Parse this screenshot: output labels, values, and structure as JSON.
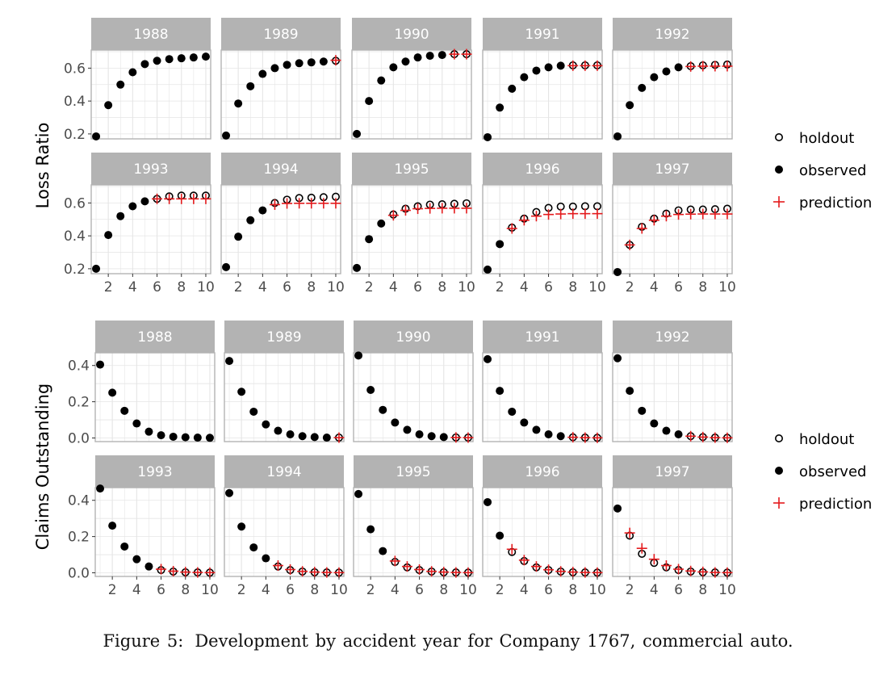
{
  "caption": {
    "label": "Figure 5:",
    "text": "Development by accident year for Company 1767, commercial auto."
  },
  "legend": {
    "holdout": "holdout",
    "observed": "observed",
    "prediction": "prediction"
  },
  "colors": {
    "strip": "#b3b3b3",
    "strip_text": "#ffffff",
    "point": "#000000",
    "prediction": "#e41a1c",
    "grid": "#e5e5e5",
    "panel_border": "#b3b3b3"
  },
  "chart_data": [
    {
      "type": "scatter",
      "facet_layout": "wrap 2x5",
      "ylabel": "Loss Ratio",
      "x_ticks": [
        2,
        4,
        6,
        8,
        10
      ],
      "y_ticks": [
        "0.2",
        "0.4",
        "0.6"
      ],
      "ylim": [
        0.17,
        0.71
      ],
      "xlim": [
        0.6,
        10.4
      ],
      "grid": true,
      "legend_position": "right",
      "panels": [
        {
          "year": "1988",
          "observed": [
            0.185,
            0.375,
            0.5,
            0.575,
            0.625,
            0.645,
            0.655,
            0.66,
            0.665,
            0.67
          ],
          "holdout": [],
          "prediction": []
        },
        {
          "year": "1989",
          "observed": [
            0.19,
            0.385,
            0.49,
            0.565,
            0.6,
            0.62,
            0.63,
            0.635,
            0.64
          ],
          "holdout": [
            0.645
          ],
          "prediction": [
            0.648
          ]
        },
        {
          "year": "1990",
          "observed": [
            0.2,
            0.4,
            0.525,
            0.605,
            0.64,
            0.665,
            0.675,
            0.68
          ],
          "holdout": [
            0.685,
            0.685
          ],
          "prediction": [
            0.685,
            0.685
          ]
        },
        {
          "year": "1991",
          "observed": [
            0.18,
            0.36,
            0.475,
            0.545,
            0.585,
            0.605,
            0.615
          ],
          "holdout": [
            0.617,
            0.617,
            0.617
          ],
          "prediction": [
            0.615,
            0.615,
            0.615
          ]
        },
        {
          "year": "1992",
          "observed": [
            0.185,
            0.375,
            0.48,
            0.545,
            0.58,
            0.605
          ],
          "holdout": [
            0.612,
            0.617,
            0.62,
            0.622
          ],
          "prediction": [
            0.61,
            0.612,
            0.612,
            0.612
          ]
        },
        {
          "year": "1993",
          "observed": [
            0.2,
            0.405,
            0.52,
            0.58,
            0.61
          ],
          "holdout": [
            0.625,
            0.64,
            0.645,
            0.645,
            0.645
          ],
          "prediction": [
            0.625,
            0.625,
            0.625,
            0.625,
            0.625
          ]
        },
        {
          "year": "1994",
          "observed": [
            0.21,
            0.395,
            0.495,
            0.555
          ],
          "holdout": [
            0.6,
            0.62,
            0.63,
            0.632,
            0.635,
            0.638
          ],
          "prediction": [
            0.59,
            0.597,
            0.598,
            0.598,
            0.598,
            0.598
          ]
        },
        {
          "year": "1995",
          "observed": [
            0.205,
            0.38,
            0.475
          ],
          "holdout": [
            0.53,
            0.565,
            0.58,
            0.59,
            0.592,
            0.595,
            0.598
          ],
          "prediction": [
            0.525,
            0.555,
            0.565,
            0.567,
            0.568,
            0.568,
            0.568
          ]
        },
        {
          "year": "1996",
          "observed": [
            0.195,
            0.35
          ],
          "holdout": [
            0.45,
            0.505,
            0.545,
            0.57,
            0.578,
            0.578,
            0.58,
            0.58
          ],
          "prediction": [
            0.445,
            0.495,
            0.52,
            0.53,
            0.533,
            0.535,
            0.535,
            0.535
          ]
        },
        {
          "year": "1997",
          "observed": [
            0.18
          ],
          "holdout": [
            0.345,
            0.455,
            0.505,
            0.535,
            0.555,
            0.56,
            0.56,
            0.562,
            0.565
          ],
          "prediction": [
            0.345,
            0.445,
            0.495,
            0.52,
            0.53,
            0.532,
            0.533,
            0.533,
            0.533
          ]
        }
      ]
    },
    {
      "type": "scatter",
      "facet_layout": "wrap 2x5",
      "ylabel": "Claims Outstanding",
      "x_ticks": [
        2,
        4,
        6,
        8,
        10
      ],
      "y_ticks": [
        "0.0",
        "0.2",
        "0.4"
      ],
      "ylim": [
        -0.02,
        0.47
      ],
      "xlim": [
        0.6,
        10.4
      ],
      "grid": true,
      "legend_position": "right",
      "panels": [
        {
          "year": "1988",
          "observed": [
            0.405,
            0.25,
            0.15,
            0.08,
            0.035,
            0.015,
            0.007,
            0.004,
            0.002,
            0.001
          ],
          "holdout": [],
          "prediction": []
        },
        {
          "year": "1989",
          "observed": [
            0.425,
            0.255,
            0.145,
            0.075,
            0.04,
            0.02,
            0.01,
            0.005,
            0.002
          ],
          "holdout": [
            0.002
          ],
          "prediction": [
            0.002
          ]
        },
        {
          "year": "1990",
          "observed": [
            0.455,
            0.265,
            0.155,
            0.085,
            0.045,
            0.02,
            0.01,
            0.005
          ],
          "holdout": [
            0.003,
            0.002
          ],
          "prediction": [
            0.003,
            0.002
          ]
        },
        {
          "year": "1991",
          "observed": [
            0.435,
            0.26,
            0.145,
            0.085,
            0.045,
            0.02,
            0.01
          ],
          "holdout": [
            0.004,
            0.002,
            0.001
          ],
          "prediction": [
            0.004,
            0.002,
            0.001
          ]
        },
        {
          "year": "1992",
          "observed": [
            0.44,
            0.26,
            0.15,
            0.08,
            0.04,
            0.02
          ],
          "holdout": [
            0.01,
            0.005,
            0.002,
            0.001
          ],
          "prediction": [
            0.01,
            0.005,
            0.002,
            0.001
          ]
        },
        {
          "year": "1993",
          "observed": [
            0.465,
            0.26,
            0.145,
            0.075,
            0.035
          ],
          "holdout": [
            0.015,
            0.007,
            0.003,
            0.002,
            0.001
          ],
          "prediction": [
            0.02,
            0.009,
            0.004,
            0.002,
            0.001
          ]
        },
        {
          "year": "1994",
          "observed": [
            0.44,
            0.255,
            0.14,
            0.08
          ],
          "holdout": [
            0.035,
            0.015,
            0.007,
            0.003,
            0.002,
            0.001
          ],
          "prediction": [
            0.04,
            0.018,
            0.008,
            0.004,
            0.002,
            0.001
          ]
        },
        {
          "year": "1995",
          "observed": [
            0.435,
            0.24,
            0.12
          ],
          "holdout": [
            0.06,
            0.03,
            0.015,
            0.007,
            0.003,
            0.002,
            0.001
          ],
          "prediction": [
            0.065,
            0.035,
            0.018,
            0.008,
            0.004,
            0.002,
            0.001
          ]
        },
        {
          "year": "1996",
          "observed": [
            0.39,
            0.205
          ],
          "holdout": [
            0.115,
            0.065,
            0.03,
            0.015,
            0.007,
            0.003,
            0.002,
            0.001
          ],
          "prediction": [
            0.13,
            0.07,
            0.035,
            0.017,
            0.008,
            0.004,
            0.002,
            0.001
          ]
        },
        {
          "year": "1997",
          "observed": [
            0.355
          ],
          "holdout": [
            0.205,
            0.105,
            0.055,
            0.03,
            0.015,
            0.007,
            0.003,
            0.002,
            0.001
          ],
          "prediction": [
            0.22,
            0.135,
            0.075,
            0.04,
            0.02,
            0.01,
            0.005,
            0.002,
            0.001
          ]
        }
      ]
    }
  ]
}
